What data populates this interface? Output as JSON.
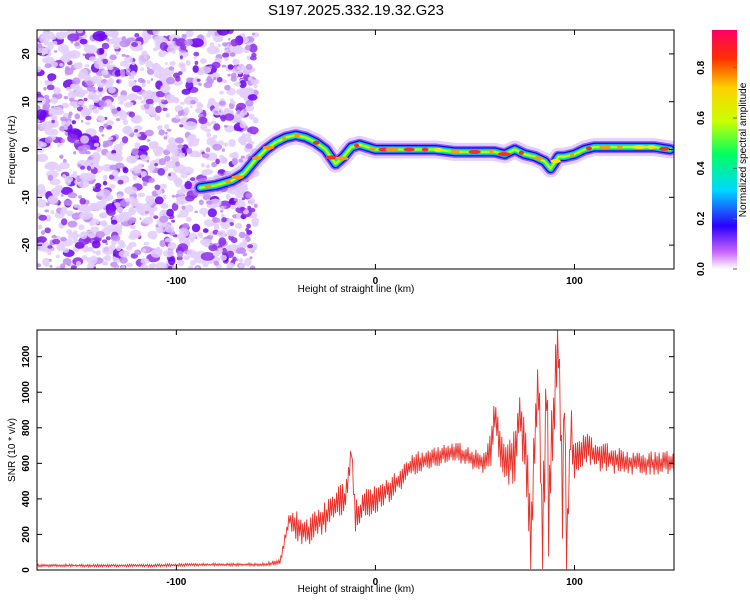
{
  "chart_data": [
    {
      "type": "heatmap",
      "title": "S197.2025.332.19.32.G23",
      "xlabel": "Height of straight line (km)",
      "ylabel": "Frequency (Hz)",
      "xlim": [
        -170,
        150
      ],
      "ylim": [
        -25,
        25
      ],
      "x_ticks": [
        -100,
        0,
        100
      ],
      "y_ticks": [
        -20,
        -10,
        0,
        10,
        20
      ],
      "noise_region_x": [
        -170,
        -60
      ],
      "colorbar": {
        "label": "Normalized spectral amplitude",
        "range": [
          0.0,
          0.95
        ],
        "ticks": [
          0.0,
          0.2,
          0.4,
          0.6,
          0.8
        ]
      },
      "ridge": {
        "x": [
          -88,
          -80,
          -72,
          -66,
          -60,
          -55,
          -50,
          -45,
          -40,
          -35,
          -30,
          -25,
          -20,
          -16,
          -12,
          -8,
          -4,
          0,
          10,
          20,
          30,
          40,
          50,
          60,
          65,
          70,
          75,
          80,
          85,
          88,
          92,
          95,
          100,
          105,
          110,
          120,
          130,
          140,
          148
        ],
        "freq": [
          -8,
          -7.5,
          -6.5,
          -5,
          -2,
          0,
          1.5,
          2.5,
          3,
          2.5,
          1.5,
          0,
          -3,
          -1.5,
          0.5,
          1,
          0.5,
          0,
          0,
          0,
          0,
          -0.5,
          -0.5,
          -0.5,
          -1,
          0,
          -1,
          -1.5,
          -2.5,
          -4,
          -1.5,
          -1.5,
          -1,
          0,
          0.5,
          0.5,
          0.5,
          0.5,
          0
        ]
      }
    },
    {
      "type": "line",
      "xlabel": "Height of straight line (km)",
      "ylabel": "SNR (10 * v/v)",
      "xlim": [
        -170,
        150
      ],
      "ylim": [
        0,
        1350
      ],
      "x_ticks": [
        -100,
        0,
        100
      ],
      "y_ticks": [
        0,
        200,
        400,
        600,
        800,
        1000,
        1200
      ],
      "color": "#e8332c",
      "series": [
        {
          "name": "SNR",
          "x": [
            -170,
            -150,
            -130,
            -110,
            -90,
            -70,
            -55,
            -48,
            -45,
            -43,
            -40,
            -35,
            -30,
            -25,
            -20,
            -15,
            -12,
            -10,
            -5,
            0,
            5,
            10,
            15,
            20,
            25,
            30,
            35,
            40,
            45,
            50,
            55,
            58,
            60,
            65,
            70,
            72,
            75,
            76,
            78,
            80,
            82,
            84,
            86,
            87,
            88,
            90,
            92,
            94,
            95,
            96,
            98,
            100,
            105,
            110,
            120,
            130,
            140,
            150
          ],
          "val": [
            25,
            25,
            25,
            25,
            30,
            30,
            30,
            45,
            200,
            280,
            260,
            200,
            250,
            300,
            380,
            400,
            680,
            300,
            380,
            400,
            450,
            480,
            560,
            600,
            620,
            640,
            650,
            660,
            650,
            620,
            600,
            700,
            880,
            600,
            640,
            900,
            700,
            550,
            100,
            800,
            1000,
            200,
            1100,
            300,
            600,
            900,
            1350,
            300,
            1100,
            60,
            800,
            600,
            700,
            650,
            620,
            600,
            600,
            600
          ],
          "spread": [
            8,
            8,
            8,
            8,
            8,
            8,
            10,
            20,
            50,
            60,
            90,
            90,
            90,
            90,
            90,
            90,
            90,
            90,
            90,
            90,
            80,
            80,
            70,
            70,
            60,
            60,
            60,
            60,
            60,
            60,
            60,
            120,
            140,
            130,
            160,
            160,
            200,
            220,
            240,
            250,
            260,
            260,
            280,
            280,
            260,
            260,
            260,
            240,
            220,
            200,
            160,
            120,
            100,
            90,
            80,
            70,
            70,
            70
          ]
        }
      ]
    }
  ]
}
